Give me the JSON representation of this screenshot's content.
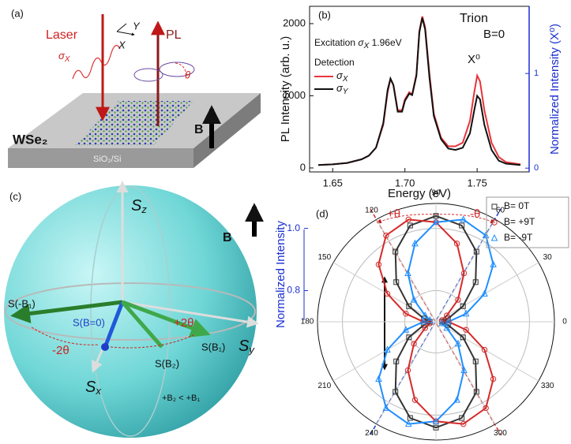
{
  "panel_a": {
    "tag": "(a)",
    "laser": "Laser",
    "sigma": [
      "σ",
      "X"
    ],
    "pl": "PL",
    "theta": "θ",
    "ax_x": "X",
    "ax_y": "Y",
    "b": "B",
    "material": "WSe₂",
    "substrate": "SiO₂/Si"
  },
  "panel_c": {
    "tag": "(c)",
    "sz": [
      "S",
      "z"
    ],
    "sy": [
      "S",
      "y"
    ],
    "sx": [
      "S",
      "x"
    ],
    "b": "B",
    "s_minus_b1": "S(-B₁)",
    "s_b0": "S(B=0)",
    "s_b2": "S(B₂)",
    "s_b1": "S(B₁)",
    "minus_2theta": "-2θ",
    "plus_2theta": "+2θ",
    "relation": "+B₂ < +B₁"
  },
  "chart_data": [
    {
      "type": "line",
      "title": "(b)",
      "trion": "Trion",
      "field": "B=0",
      "excitation": [
        "Excitation ",
        "σ",
        "X",
        "  1.96eV"
      ],
      "detection": "Detection",
      "peak": "X⁰",
      "x_label": "Energy (eV)",
      "y_label": "PL Intensity (arb. u.)",
      "y2_label": "Normalized Intensity (X⁰)",
      "x": [
        1.64,
        1.65,
        1.66,
        1.67,
        1.675,
        1.68,
        1.685,
        1.688,
        1.69,
        1.692,
        1.695,
        1.698,
        1.7,
        1.703,
        1.705,
        1.708,
        1.71,
        1.712,
        1.714,
        1.717,
        1.72,
        1.725,
        1.73,
        1.735,
        1.74,
        1.745,
        1.748,
        1.75,
        1.752,
        1.755,
        1.76,
        1.765,
        1.77,
        1.78
      ],
      "series": [
        {
          "name": [
            "σ",
            "X"
          ],
          "color": "#e8343a",
          "values": [
            40,
            50,
            70,
            120,
            170,
            280,
            600,
            1050,
            1230,
            1150,
            800,
            800,
            950,
            1050,
            1020,
            1300,
            1900,
            2100,
            1950,
            1300,
            750,
            420,
            300,
            300,
            350,
            650,
            1050,
            1280,
            1200,
            800,
            350,
            150,
            80,
            50
          ]
        },
        {
          "name": [
            "σ",
            "Y"
          ],
          "color": "#111111",
          "values": [
            40,
            50,
            70,
            120,
            170,
            280,
            620,
            1080,
            1240,
            1150,
            780,
            780,
            930,
            1030,
            1010,
            1280,
            1880,
            2080,
            1920,
            1250,
            720,
            400,
            270,
            250,
            280,
            480,
            800,
            1000,
            950,
            600,
            250,
            100,
            60,
            40
          ]
        }
      ],
      "xlim": [
        1.634,
        1.786
      ],
      "xticks": [
        1.65,
        {
          "value": 1.7,
          "label": "1.70"
        },
        1.75
      ],
      "ylim": [
        -55,
        2240
      ],
      "yticks": [
        0,
        1000,
        2000
      ],
      "y2lim": [
        -0.04,
        1.71
      ],
      "y2ticks": [
        0,
        1
      ]
    },
    {
      "type": "polar",
      "title": "(d)",
      "r_label": "Normalized Intensity",
      "plus_theta": "+θ",
      "minus_theta": "-θ",
      "theta": [
        0,
        15,
        30,
        45,
        60,
        75,
        90,
        105,
        120,
        135,
        150,
        165,
        180,
        195,
        210,
        225,
        240,
        255,
        270,
        285,
        300,
        315,
        330,
        345
      ],
      "thetaticks": [
        0,
        30,
        60,
        90,
        120,
        150,
        180,
        210,
        240,
        270,
        300,
        330
      ],
      "rlim": [
        0.7,
        1.08
      ],
      "rticks": [
        0.8,
        {
          "value": 1,
          "label": "1.0"
        }
      ],
      "series": [
        {
          "name": "B= 0T",
          "color": "#333333",
          "marker": "square",
          "values": [
            0.72,
            0.74,
            0.8,
            0.88,
            0.96,
            1.02,
            1.04,
            1.02,
            0.96,
            0.88,
            0.8,
            0.74,
            0.72,
            0.74,
            0.8,
            0.88,
            0.96,
            1.02,
            1.04,
            1.02,
            0.96,
            0.88,
            0.8,
            0.74
          ]
        },
        {
          "name": "B= +9T",
          "color": "#d42a2a",
          "marker": "circle",
          "values": [
            0.74,
            0.72,
            0.74,
            0.8,
            0.88,
            0.96,
            1.02,
            1.04,
            1.02,
            0.96,
            0.88,
            0.8,
            0.74,
            0.72,
            0.74,
            0.8,
            0.88,
            0.96,
            1.02,
            1.04,
            1.02,
            0.96,
            0.88,
            0.8
          ]
        },
        {
          "name": "B= -9T",
          "color": "#1f8fff",
          "marker": "triangle",
          "values": [
            0.74,
            0.8,
            0.88,
            0.96,
            1.02,
            1.04,
            1.02,
            0.96,
            0.88,
            0.8,
            0.74,
            0.72,
            0.74,
            0.8,
            0.88,
            0.96,
            1.02,
            1.04,
            1.02,
            0.96,
            0.88,
            0.8,
            0.74,
            0.72
          ]
        }
      ]
    }
  ]
}
